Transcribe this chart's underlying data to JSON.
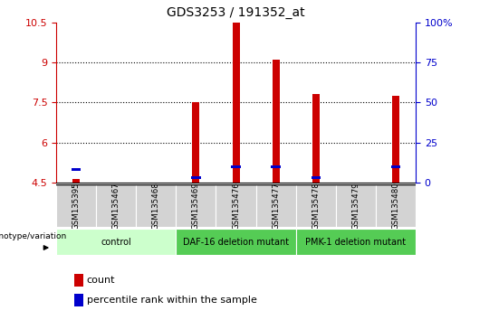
{
  "title": "GDS3253 / 191352_at",
  "samples": [
    "GSM135395",
    "GSM135467",
    "GSM135468",
    "GSM135469",
    "GSM135476",
    "GSM135477",
    "GSM135478",
    "GSM135479",
    "GSM135480"
  ],
  "counts": [
    4.62,
    4.5,
    4.5,
    7.5,
    10.5,
    9.1,
    7.8,
    4.5,
    7.75
  ],
  "percentile_ranks_pct": [
    8,
    0,
    0,
    3,
    10,
    10,
    3,
    0,
    10
  ],
  "ylim_left": [
    4.5,
    10.5
  ],
  "ylim_right": [
    0,
    100
  ],
  "yticks_left": [
    4.5,
    6.0,
    7.5,
    9.0,
    10.5
  ],
  "ytick_labels_left": [
    "4.5",
    "6",
    "7.5",
    "9",
    "10.5"
  ],
  "yticks_right": [
    0,
    25,
    50,
    75,
    100
  ],
  "ytick_labels_right": [
    "0",
    "25",
    "50",
    "75",
    "100%"
  ],
  "groups": [
    {
      "label": "control",
      "start": 0,
      "end": 3,
      "color": "#ccffcc"
    },
    {
      "label": "DAF-16 deletion mutant",
      "start": 3,
      "end": 6,
      "color": "#55cc55"
    },
    {
      "label": "PMK-1 deletion mutant",
      "start": 6,
      "end": 9,
      "color": "#55cc55"
    }
  ],
  "bar_color": "#cc0000",
  "percentile_color": "#0000cc",
  "bar_width": 0.18,
  "count_base": 4.5,
  "label_color_left": "#cc0000",
  "label_color_right": "#0000cc"
}
